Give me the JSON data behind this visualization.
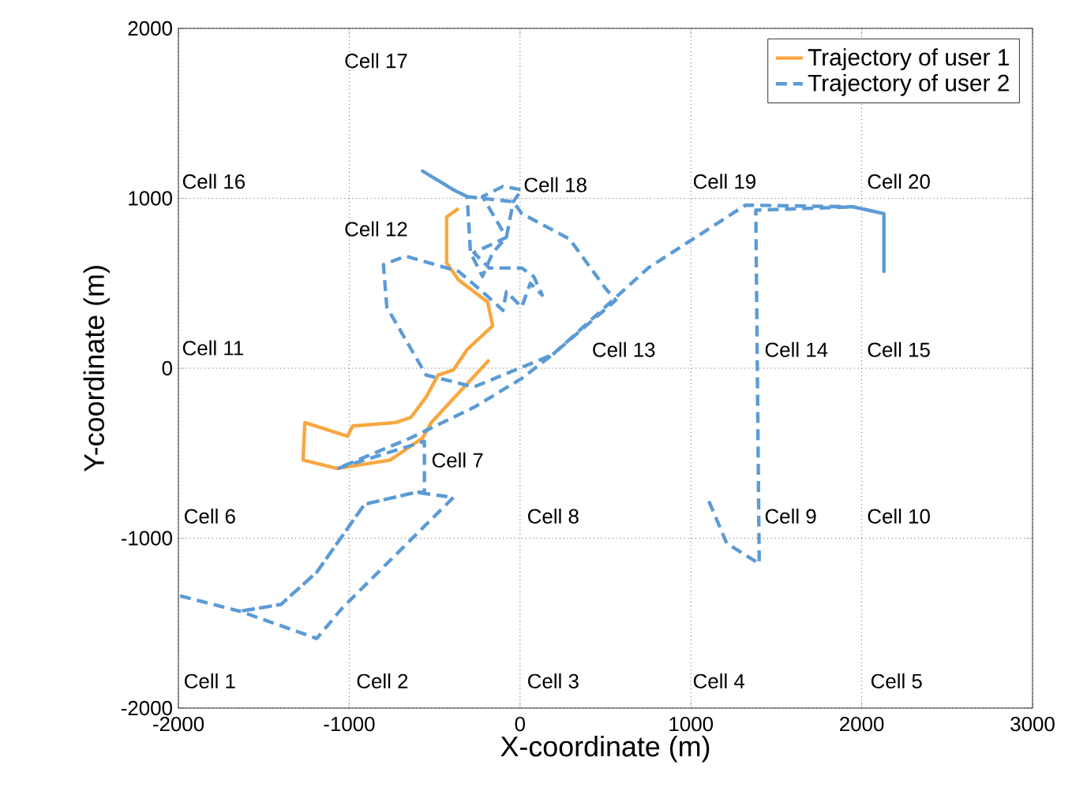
{
  "chart_data": {
    "type": "line",
    "xlabel": "X-coordinate (m)",
    "ylabel": "Y-coordinate (m)",
    "xlim": [
      -2000,
      3000
    ],
    "ylim": [
      -2000,
      2000
    ],
    "xticks": [
      -2000,
      -1000,
      0,
      1000,
      2000,
      3000
    ],
    "yticks": [
      -2000,
      -1000,
      0,
      1000,
      2000
    ],
    "grid": true,
    "legend": "top right",
    "marker": "none",
    "series": [
      {
        "name": "Trajectory of user 1",
        "color": "#f9a640",
        "line_style": "solid",
        "x": [
          -360,
          -430,
          -430,
          -360,
          -190,
          -160,
          -310,
          -390,
          -480,
          -550,
          -640,
          -730,
          -980,
          -1010,
          -1260,
          -1270,
          -1070,
          -760,
          -570,
          -520,
          -180
        ],
        "values": [
          940,
          890,
          620,
          520,
          390,
          250,
          110,
          -10,
          -40,
          -170,
          -290,
          -320,
          -340,
          -400,
          -320,
          -540,
          -590,
          -540,
          -410,
          -320,
          50
        ]
      },
      {
        "name": "Trajectory of user 2",
        "color": "#5b9bd5",
        "line_style": "dashed",
        "x": [
          -1990,
          -1640,
          -1190,
          -1040,
          -390,
          -610,
          -910,
          -1190,
          -1400,
          -1640,
          -1400,
          -1190,
          -910,
          -610,
          -560,
          -560,
          -910,
          -1070,
          -640,
          -270,
          10,
          190,
          -270,
          -550,
          -780,
          -800,
          -670,
          -360,
          -220,
          -100,
          -80,
          10,
          60,
          130,
          80,
          10,
          -180,
          -270,
          -80,
          -220,
          -100,
          10,
          -40,
          -80,
          -160,
          -220,
          -290,
          -310,
          -390,
          -570,
          -390,
          -310,
          -40,
          10,
          290,
          500,
          560,
          190,
          290,
          750,
          1320,
          1950,
          2130,
          2130,
          2130,
          1950,
          1380,
          1400,
          1210,
          1100
        ],
        "values": [
          -1340,
          -1430,
          -1590,
          -1410,
          -760,
          -730,
          -800,
          -1200,
          -1390,
          -1430,
          -1390,
          -1200,
          -800,
          -730,
          -730,
          -430,
          -540,
          -590,
          -410,
          -230,
          -60,
          80,
          -110,
          -40,
          360,
          610,
          660,
          570,
          450,
          340,
          450,
          360,
          500,
          430,
          540,
          590,
          590,
          680,
          770,
          1010,
          1070,
          1050,
          980,
          770,
          680,
          540,
          680,
          1010,
          1050,
          1160,
          1050,
          1010,
          980,
          910,
          760,
          470,
          400,
          80,
          170,
          590,
          960,
          950,
          910,
          570,
          910,
          950,
          930,
          -1150,
          -1030,
          -770
        ]
      }
    ],
    "annotations": [
      "Cell 1",
      "Cell 2",
      "Cell 3",
      "Cell 4",
      "Cell 5",
      "Cell 6",
      "Cell 7",
      "Cell 8",
      "Cell 9",
      "Cell 10",
      "Cell 11",
      "Cell 12",
      "Cell 13",
      "Cell 14",
      "Cell 15",
      "Cell 16",
      "Cell 17",
      "Cell 18",
      "Cell 19",
      "Cell 20"
    ]
  }
}
